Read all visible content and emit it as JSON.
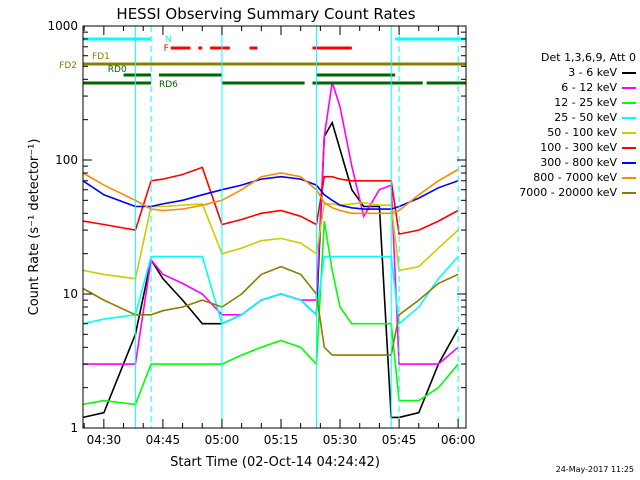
{
  "chart_data": {
    "type": "line",
    "title": "HESSI Observing Summary Count Rates",
    "xlabel": "Start Time (02-Oct-14 04:24:42)",
    "ylabel": "Count Rate (s⁻¹ detector⁻¹)",
    "y_scale": "log",
    "ylim": [
      1,
      1000
    ],
    "y_ticks": [
      1,
      10,
      100,
      1000
    ],
    "y_tick_labels": [
      "1",
      "10",
      "100",
      "1000"
    ],
    "xlim": [
      "04:24:42",
      "06:02:00"
    ],
    "x_ticks": [
      "04:30",
      "04:45",
      "05:00",
      "05:15",
      "05:30",
      "05:45",
      "06:00"
    ],
    "legend_title": "Det 1,3,6,9, Att 0",
    "legend_position": "right",
    "series": [
      {
        "name": "3 - 6 keV",
        "color": "#000000",
        "x": [
          "04:24:42",
          "04:30",
          "04:38",
          "04:42",
          "04:45",
          "04:50",
          "04:55",
          "05:00",
          "05:05",
          "05:10",
          "05:15",
          "05:20",
          "05:24",
          "05:26",
          "05:28",
          "05:30",
          "05:33",
          "05:36",
          "05:40",
          "05:43",
          "05:45",
          "05:50",
          "05:55",
          "06:00"
        ],
        "y": [
          1.2,
          1.3,
          5,
          18,
          13,
          9,
          6,
          6,
          7,
          9,
          10,
          9,
          7,
          150,
          190,
          120,
          60,
          45,
          45,
          1.2,
          1.2,
          1.3,
          3,
          5.5
        ]
      },
      {
        "name": "6 - 12 keV",
        "color": "#ff00ff",
        "x": [
          "04:24:42",
          "04:30",
          "04:38",
          "04:42",
          "04:45",
          "04:50",
          "04:55",
          "05:00",
          "05:05",
          "05:10",
          "05:15",
          "05:20",
          "05:24",
          "05:26",
          "05:28",
          "05:30",
          "05:33",
          "05:36",
          "05:40",
          "05:43",
          "05:45",
          "05:50",
          "05:55",
          "06:00"
        ],
        "y": [
          3,
          3,
          3,
          18,
          14,
          12,
          10,
          7,
          7,
          9,
          10,
          9,
          9,
          150,
          380,
          250,
          90,
          38,
          60,
          65,
          3,
          3,
          3,
          4
        ]
      },
      {
        "name": "12 - 25 keV",
        "color": "#00ff00",
        "x": [
          "04:24:42",
          "04:30",
          "04:38",
          "04:42",
          "04:45",
          "04:50",
          "04:55",
          "05:00",
          "05:05",
          "05:10",
          "05:15",
          "05:20",
          "05:24",
          "05:26",
          "05:28",
          "05:30",
          "05:33",
          "05:36",
          "05:40",
          "05:43",
          "05:45",
          "05:50",
          "05:55",
          "06:00"
        ],
        "y": [
          1.5,
          1.6,
          1.5,
          3,
          3,
          3,
          3,
          3,
          3.5,
          4,
          4.5,
          4,
          3,
          35,
          15,
          8,
          6,
          6,
          6,
          6,
          1.6,
          1.6,
          2,
          3
        ]
      },
      {
        "name": "25 - 50 keV",
        "color": "#00ffff",
        "x": [
          "04:24:42",
          "04:30",
          "04:38",
          "04:42",
          "04:45",
          "04:50",
          "04:55",
          "05:00",
          "05:05",
          "05:10",
          "05:15",
          "05:20",
          "05:24",
          "05:26",
          "05:28",
          "05:30",
          "05:33",
          "05:36",
          "05:40",
          "05:43",
          "05:45",
          "05:50",
          "05:55",
          "06:00"
        ],
        "y": [
          6,
          6.5,
          7,
          19,
          19,
          19,
          19,
          6,
          7,
          9,
          10,
          9,
          7,
          19,
          19,
          19,
          19,
          19,
          19,
          19,
          6,
          8,
          13,
          19
        ]
      },
      {
        "name": "50 - 100 keV",
        "color": "#cccc00",
        "x": [
          "04:24:42",
          "04:30",
          "04:38",
          "04:42",
          "04:45",
          "04:50",
          "04:55",
          "05:00",
          "05:05",
          "05:10",
          "05:15",
          "05:20",
          "05:24",
          "05:26",
          "05:28",
          "05:30",
          "05:33",
          "05:36",
          "05:40",
          "05:43",
          "05:45",
          "05:50",
          "05:55",
          "06:00"
        ],
        "y": [
          15,
          14,
          13,
          45,
          45,
          46,
          47,
          20,
          22,
          25,
          26,
          24,
          20,
          47,
          47,
          46,
          47,
          48,
          46,
          46,
          15,
          16,
          22,
          30
        ]
      },
      {
        "name": "100 - 300 keV",
        "color": "#ff0000",
        "x": [
          "04:24:42",
          "04:30",
          "04:38",
          "04:42",
          "04:45",
          "04:50",
          "04:55",
          "05:00",
          "05:05",
          "05:10",
          "05:15",
          "05:20",
          "05:24",
          "05:26",
          "05:28",
          "05:30",
          "05:33",
          "05:36",
          "05:40",
          "05:43",
          "05:45",
          "05:50",
          "05:55",
          "06:00"
        ],
        "y": [
          35,
          33,
          30,
          70,
          72,
          78,
          88,
          33,
          36,
          40,
          42,
          38,
          33,
          75,
          75,
          72,
          70,
          70,
          70,
          70,
          28,
          30,
          35,
          42
        ]
      },
      {
        "name": "300 - 800 keV",
        "color": "#0000ff",
        "x": [
          "04:24:42",
          "04:30",
          "04:38",
          "04:42",
          "04:45",
          "04:50",
          "04:55",
          "05:00",
          "05:05",
          "05:10",
          "05:15",
          "05:20",
          "05:24",
          "05:26",
          "05:28",
          "05:30",
          "05:33",
          "05:36",
          "05:40",
          "05:43",
          "05:45",
          "05:50",
          "05:55",
          "06:00"
        ],
        "y": [
          70,
          55,
          45,
          45,
          47,
          50,
          55,
          60,
          65,
          72,
          75,
          72,
          65,
          55,
          50,
          46,
          44,
          43,
          43,
          43,
          45,
          52,
          62,
          70
        ]
      },
      {
        "name": "800 - 7000 keV",
        "color": "#ff8c00",
        "x": [
          "04:24:42",
          "04:30",
          "04:38",
          "04:42",
          "04:45",
          "04:50",
          "04:55",
          "05:00",
          "05:05",
          "05:10",
          "05:15",
          "05:20",
          "05:24",
          "05:26",
          "05:28",
          "05:30",
          "05:33",
          "05:36",
          "05:40",
          "05:43",
          "05:45",
          "05:50",
          "05:55",
          "06:00"
        ],
        "y": [
          80,
          65,
          50,
          43,
          42,
          43,
          46,
          50,
          60,
          75,
          80,
          75,
          60,
          48,
          44,
          42,
          40,
          40,
          40,
          40,
          42,
          55,
          70,
          85
        ]
      },
      {
        "name": "7000 - 20000 keV",
        "color": "#8b7d00",
        "x": [
          "04:24:42",
          "04:30",
          "04:38",
          "04:42",
          "04:45",
          "04:50",
          "04:55",
          "05:00",
          "05:05",
          "05:10",
          "05:15",
          "05:20",
          "05:24",
          "05:26",
          "05:28",
          "05:30",
          "05:33",
          "05:36",
          "05:40",
          "05:43",
          "05:45",
          "05:50",
          "05:55",
          "06:00"
        ],
        "y": [
          11,
          9,
          7,
          7,
          7.5,
          8,
          9,
          8,
          10,
          14,
          16,
          14,
          10,
          4,
          3.5,
          3.5,
          3.5,
          3.5,
          3.5,
          3.5,
          7,
          9,
          12,
          14
        ]
      }
    ],
    "flag_bars": [
      {
        "label": "N",
        "color": "#00ffff",
        "segments": [
          [
            "04:24:42",
            "04:42"
          ],
          [
            "05:44",
            "06:02"
          ]
        ]
      },
      {
        "label": "F",
        "color": "#ff0000",
        "segments": [
          [
            "04:47",
            "04:52"
          ],
          [
            "04:54",
            "04:55"
          ],
          [
            "04:57",
            "05:02"
          ],
          [
            "05:07",
            "05:09"
          ],
          [
            "05:23",
            "05:33"
          ]
        ]
      },
      {
        "label": "FD1",
        "color": "#8b7d00",
        "segments": [
          [
            "04:24:42",
            "05:53"
          ]
        ]
      },
      {
        "label": "FD2",
        "color": "#8b7d00",
        "segments": [
          [
            "05:53",
            "06:02"
          ]
        ]
      },
      {
        "label": "RD0",
        "color": "#006400",
        "segments": [
          [
            "04:35",
            "04:42"
          ],
          [
            "04:44",
            "05:00"
          ],
          [
            "05:24",
            "05:44"
          ]
        ]
      },
      {
        "label": "RD6",
        "color": "#006400",
        "segments": [
          [
            "04:24:42",
            "04:42"
          ],
          [
            "05:00",
            "05:21"
          ],
          [
            "05:23",
            "05:51"
          ],
          [
            "05:52",
            "06:02"
          ]
        ]
      }
    ],
    "grid": false
  },
  "date_stamp": "24-May-2017 11:25"
}
